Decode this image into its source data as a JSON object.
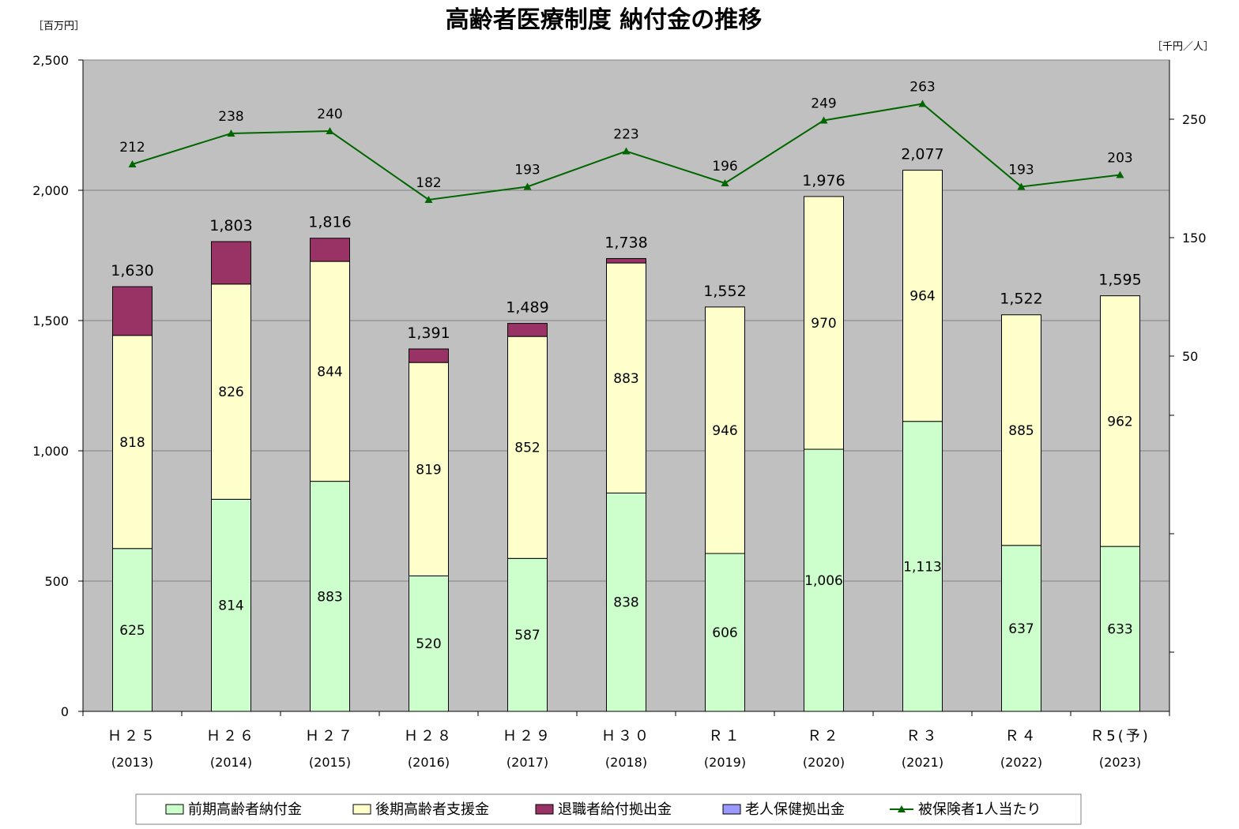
{
  "chart_data": {
    "type": "bar",
    "title": "高齢者医療制度 納付金の推移",
    "y_unit_left": "［百万円］",
    "y_unit_right": "［千円／人］",
    "ylim_left": [
      0,
      2500
    ],
    "yticks_left": [
      "0",
      "500",
      "1,000",
      "1,500",
      "2,000",
      "2,500"
    ],
    "ylim_right": [
      -250,
      300
    ],
    "yticks_right": [
      {
        "value": -200,
        "label": ""
      },
      {
        "value": -100,
        "label": ""
      },
      {
        "value": 0,
        "label": ""
      },
      {
        "value": 50,
        "label": "50"
      },
      {
        "value": 150,
        "label": "150"
      },
      {
        "value": 250,
        "label": "250"
      }
    ],
    "grid": true,
    "legend_position": "bottom",
    "categories": [
      "Ｈ２５",
      "Ｈ２６",
      "Ｈ２７",
      "Ｈ２８",
      "Ｈ２９",
      "Ｈ３０",
      "Ｒ１",
      "Ｒ２",
      "Ｒ３",
      "Ｒ４",
      "Ｒ5(予)"
    ],
    "category_years": [
      "(2013)",
      "(2014)",
      "(2015)",
      "(2016)",
      "(2017)",
      "(2018)",
      "(2019)",
      "(2020)",
      "(2021)",
      "(2022)",
      "(2023)"
    ],
    "series": [
      {
        "name": "前期高齢者納付金",
        "color": "#ccffcc",
        "values": [
          625,
          814,
          883,
          520,
          587,
          838,
          606,
          1006,
          1113,
          637,
          633
        ],
        "labels": [
          "625",
          "814",
          "883",
          "520",
          "587",
          "838",
          "606",
          "1,006",
          "1,113",
          "637",
          "633"
        ]
      },
      {
        "name": "後期高齢者支援金",
        "color": "#ffffcc",
        "values": [
          818,
          826,
          844,
          819,
          852,
          883,
          946,
          970,
          964,
          885,
          962
        ],
        "labels": [
          "818",
          "826",
          "844",
          "819",
          "852",
          "883",
          "946",
          "970",
          "964",
          "885",
          "962"
        ]
      },
      {
        "name": "退職者給付拠出金",
        "color": "#993366",
        "values": [
          187,
          163,
          89,
          52,
          50,
          17,
          0,
          0,
          0,
          0,
          0
        ],
        "labels": []
      },
      {
        "name": "老人保健拠出金",
        "color": "#9999ff",
        "values": [
          0,
          0,
          0,
          0,
          0,
          0,
          0,
          0,
          0,
          0,
          0
        ],
        "labels": []
      }
    ],
    "totals": [
      1630,
      1803,
      1816,
      1391,
      1489,
      1738,
      1552,
      1976,
      2077,
      1522,
      1595
    ],
    "total_labels": [
      "1,630",
      "1,803",
      "1,816",
      "1,391",
      "1,489",
      "1,738",
      "1,552",
      "1,976",
      "2,077",
      "1,522",
      "1,595"
    ],
    "line_series": {
      "name": "被保険者1人当たり",
      "color": "#006600",
      "axis": "right",
      "values": [
        212,
        238,
        240,
        182,
        193,
        223,
        196,
        249,
        263,
        193,
        203
      ]
    }
  }
}
